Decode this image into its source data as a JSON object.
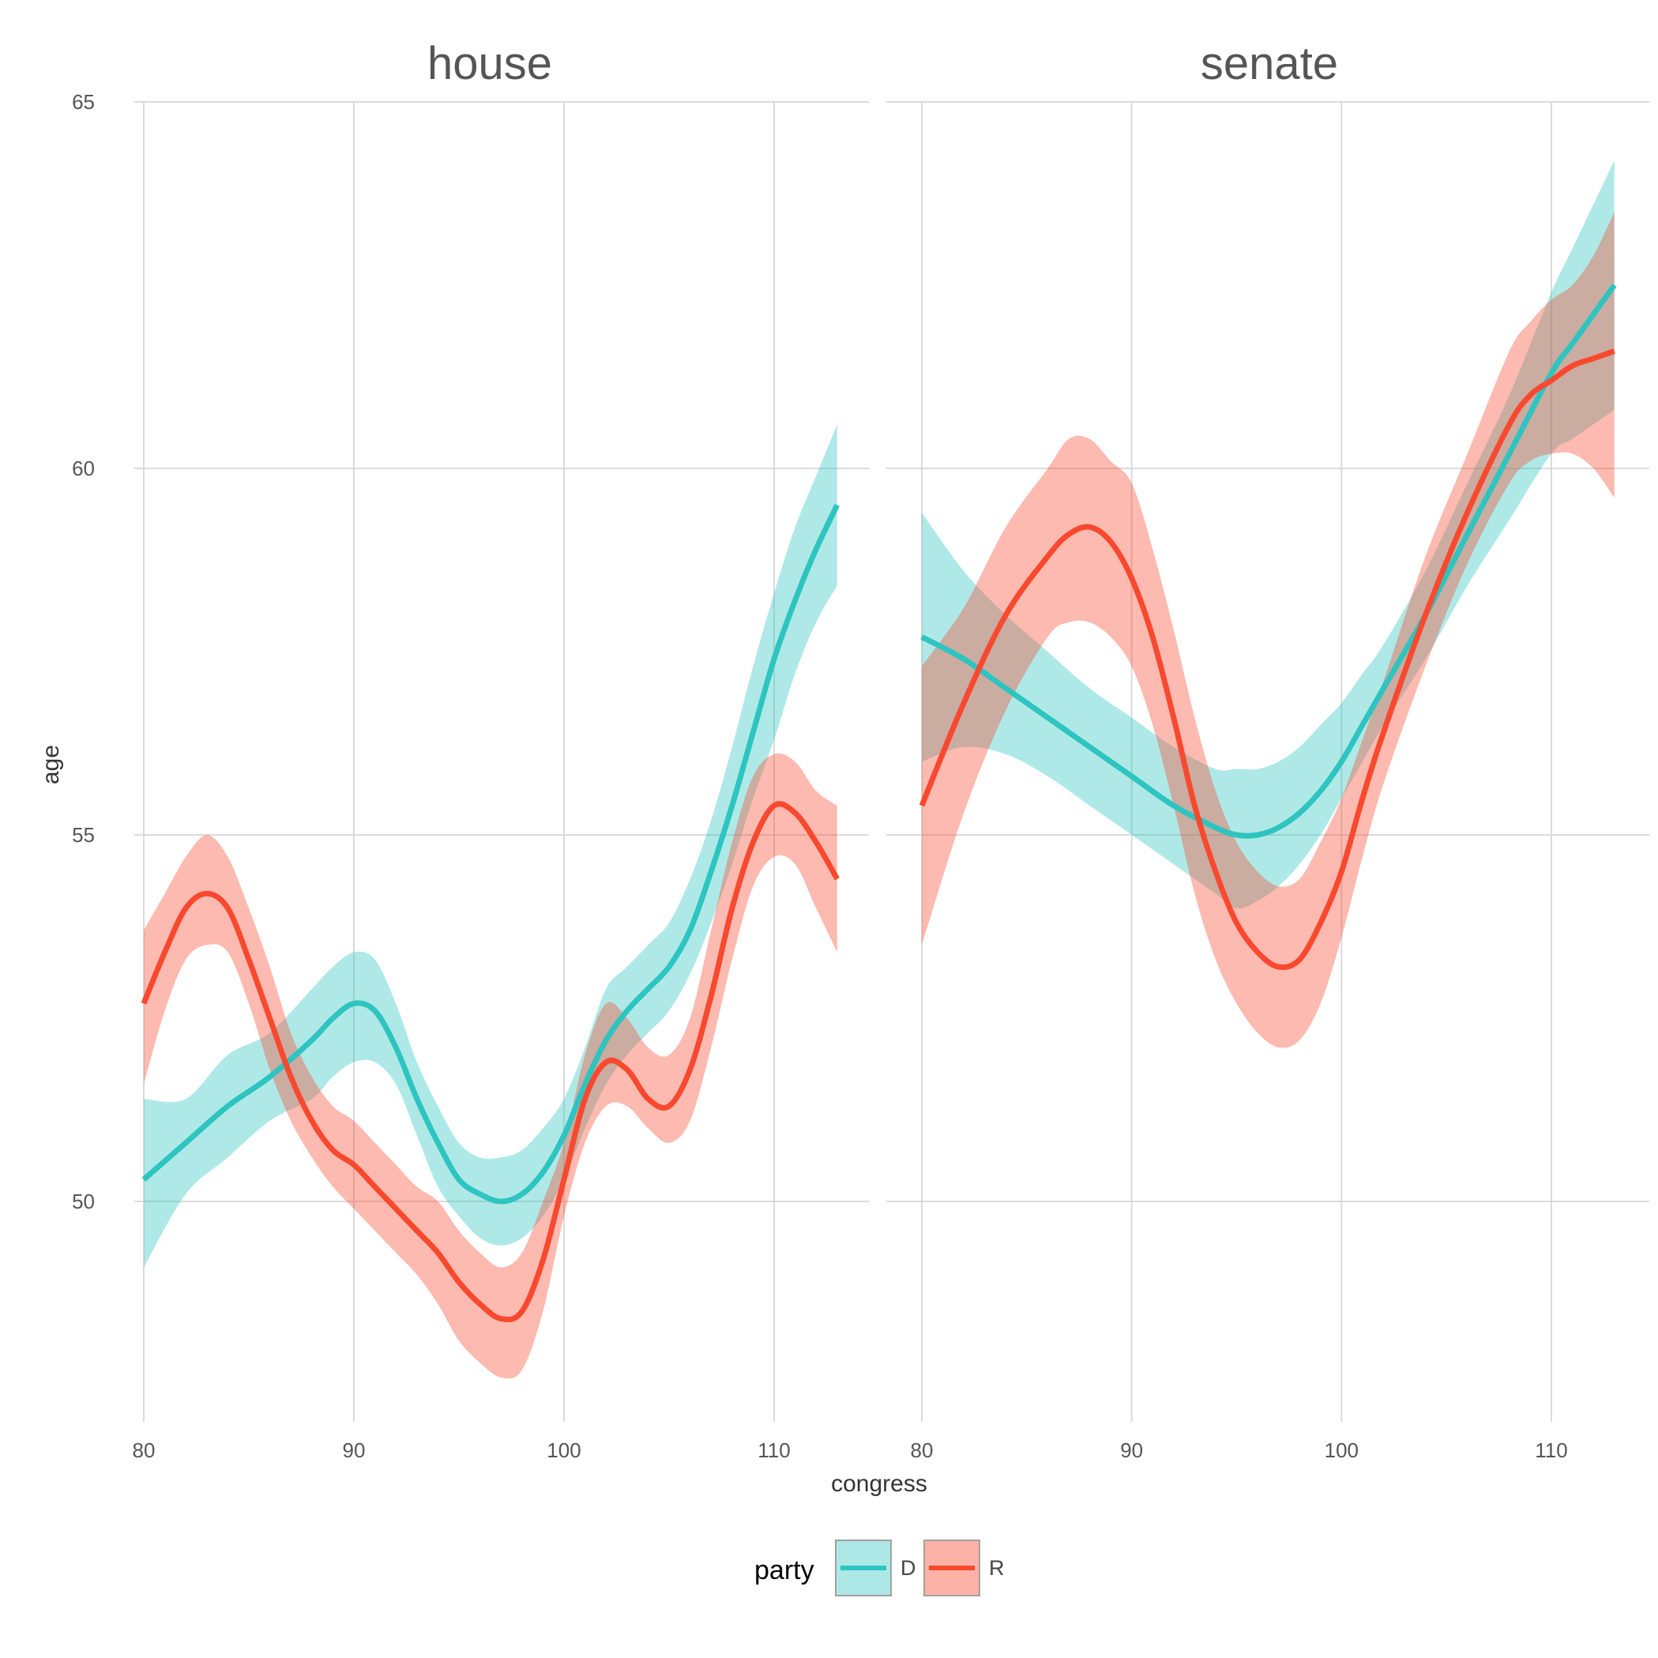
{
  "chart_data": {
    "type": "line",
    "facets": [
      "house",
      "senate"
    ],
    "xlabel": "congress",
    "ylabel": "age",
    "xlim": [
      80,
      113
    ],
    "ylim": [
      47,
      65
    ],
    "x_ticks": [
      "80",
      "90",
      "100",
      "110"
    ],
    "y_ticks": [
      "50",
      "55",
      "60",
      "65"
    ],
    "grid": true,
    "legend": {
      "title": "party",
      "position": "bottom",
      "entries": [
        {
          "label": "D",
          "color": "#2EC4C0"
        },
        {
          "label": "R",
          "color": "#F8492F"
        }
      ]
    },
    "panels": [
      {
        "facet": "house",
        "series": [
          {
            "name": "D",
            "color": "#2EC4C0",
            "x": [
              80,
              82,
              84,
              86,
              88,
              89,
              90,
              91,
              92,
              93,
              94,
              95,
              96,
              97,
              98,
              99,
              100,
              101,
              102,
              103,
              104,
              105,
              106,
              107,
              108,
              109,
              110,
              111,
              112,
              113
            ],
            "y": [
              50.3,
              50.8,
              51.3,
              51.7,
              52.2,
              52.5,
              52.7,
              52.6,
              52.1,
              51.4,
              50.8,
              50.3,
              50.1,
              50.0,
              50.1,
              50.4,
              50.9,
              51.6,
              52.2,
              52.6,
              52.9,
              53.2,
              53.7,
              54.5,
              55.4,
              56.4,
              57.4,
              58.2,
              58.9,
              59.5
            ],
            "ci_lower": [
              49.1,
              50.1,
              50.6,
              51.1,
              51.4,
              51.7,
              51.9,
              51.9,
              51.6,
              50.9,
              50.2,
              49.8,
              49.5,
              49.4,
              49.5,
              49.8,
              50.3,
              51.0,
              51.6,
              52.0,
              52.3,
              52.6,
              53.1,
              53.8,
              54.6,
              55.5,
              56.3,
              57.2,
              57.9,
              58.4
            ],
            "ci_upper": [
              51.4,
              51.4,
              52.0,
              52.3,
              52.9,
              53.2,
              53.4,
              53.3,
              52.7,
              51.9,
              51.3,
              50.8,
              50.6,
              50.6,
              50.7,
              51.0,
              51.4,
              52.1,
              52.9,
              53.2,
              53.5,
              53.8,
              54.4,
              55.2,
              56.2,
              57.3,
              58.3,
              59.2,
              59.9,
              60.6
            ]
          },
          {
            "name": "R",
            "color": "#F8492F",
            "x": [
              80,
              81,
              82,
              83,
              84,
              85,
              86,
              87,
              88,
              89,
              90,
              91,
              92,
              93,
              94,
              95,
              96,
              97,
              98,
              99,
              100,
              101,
              102,
              103,
              104,
              105,
              106,
              107,
              108,
              109,
              110,
              111,
              112,
              113
            ],
            "y": [
              52.7,
              53.4,
              54.0,
              54.2,
              54.0,
              53.3,
              52.5,
              51.7,
              51.1,
              50.7,
              50.5,
              50.2,
              49.9,
              49.6,
              49.3,
              48.9,
              48.6,
              48.4,
              48.5,
              49.2,
              50.3,
              51.4,
              51.9,
              51.8,
              51.4,
              51.3,
              51.8,
              52.8,
              54.0,
              54.9,
              55.4,
              55.3,
              54.9,
              54.4
            ],
            "ci_lower": [
              51.6,
              52.6,
              53.3,
              53.5,
              53.4,
              52.7,
              51.8,
              51.1,
              50.6,
              50.2,
              49.9,
              49.6,
              49.3,
              49.0,
              48.6,
              48.1,
              47.8,
              47.6,
              47.7,
              48.5,
              49.8,
              50.8,
              51.3,
              51.3,
              51.0,
              50.8,
              51.1,
              52.1,
              53.3,
              54.3,
              54.7,
              54.6,
              54.0,
              53.4
            ],
            "ci_upper": [
              53.7,
              54.2,
              54.7,
              55.0,
              54.7,
              54.0,
              53.2,
              52.3,
              51.7,
              51.3,
              51.1,
              50.8,
              50.5,
              50.2,
              50.0,
              49.6,
              49.3,
              49.1,
              49.3,
              50.0,
              50.8,
              52.0,
              52.7,
              52.5,
              52.1,
              52.0,
              52.5,
              53.7,
              54.9,
              55.8,
              56.1,
              56.0,
              55.6,
              55.4
            ]
          }
        ]
      },
      {
        "facet": "senate",
        "series": [
          {
            "name": "D",
            "color": "#2EC4C0",
            "x": [
              80,
              82,
              84,
              86,
              88,
              90,
              92,
              94,
              95,
              96,
              97,
              98,
              99,
              100,
              101,
              102,
              104,
              106,
              108,
              110,
              111,
              112,
              113
            ],
            "y": [
              57.7,
              57.4,
              57.0,
              56.6,
              56.2,
              55.8,
              55.4,
              55.1,
              55.0,
              55.0,
              55.1,
              55.3,
              55.6,
              56.0,
              56.5,
              57.0,
              58.0,
              59.1,
              60.2,
              61.3,
              61.7,
              62.1,
              62.5
            ],
            "ci_lower": [
              56.0,
              56.2,
              56.1,
              55.8,
              55.4,
              55.0,
              54.6,
              54.2,
              54.0,
              54.1,
              54.3,
              54.6,
              55.0,
              55.5,
              56.0,
              56.5,
              57.4,
              58.4,
              59.3,
              60.2,
              60.4,
              60.6,
              60.8
            ],
            "ci_upper": [
              59.4,
              58.6,
              58.0,
              57.5,
              57.0,
              56.6,
              56.2,
              55.9,
              55.9,
              55.9,
              56.0,
              56.2,
              56.5,
              56.8,
              57.2,
              57.6,
              58.6,
              59.8,
              61.0,
              62.4,
              63.0,
              63.6,
              64.2
            ]
          },
          {
            "name": "R",
            "color": "#F8492F",
            "x": [
              80,
              82,
              84,
              86,
              87,
              88,
              89,
              90,
              91,
              92,
              93,
              94,
              95,
              96,
              97,
              98,
              99,
              100,
              101,
              102,
              104,
              106,
              108,
              109,
              110,
              111,
              112,
              113
            ],
            "y": [
              55.4,
              56.8,
              58.0,
              58.8,
              59.1,
              59.2,
              59.0,
              58.5,
              57.7,
              56.6,
              55.4,
              54.5,
              53.8,
              53.4,
              53.2,
              53.3,
              53.8,
              54.5,
              55.5,
              56.4,
              58.0,
              59.4,
              60.6,
              61.0,
              61.2,
              61.4,
              61.5,
              61.6
            ],
            "ci_lower": [
              53.5,
              55.3,
              56.7,
              57.7,
              57.9,
              57.9,
              57.7,
              57.3,
              56.5,
              55.4,
              54.2,
              53.3,
              52.7,
              52.3,
              52.1,
              52.2,
              52.7,
              53.6,
              54.7,
              55.7,
              57.3,
              58.7,
              59.8,
              60.1,
              60.2,
              60.2,
              60.0,
              59.6
            ],
            "ci_upper": [
              57.3,
              58.1,
              59.2,
              60.0,
              60.4,
              60.4,
              60.1,
              59.8,
              58.9,
              57.8,
              56.6,
              55.6,
              54.9,
              54.5,
              54.3,
              54.4,
              54.9,
              55.5,
              56.3,
              57.1,
              58.8,
              60.2,
              61.6,
              62.0,
              62.3,
              62.5,
              62.9,
              63.5
            ]
          }
        ]
      }
    ]
  }
}
